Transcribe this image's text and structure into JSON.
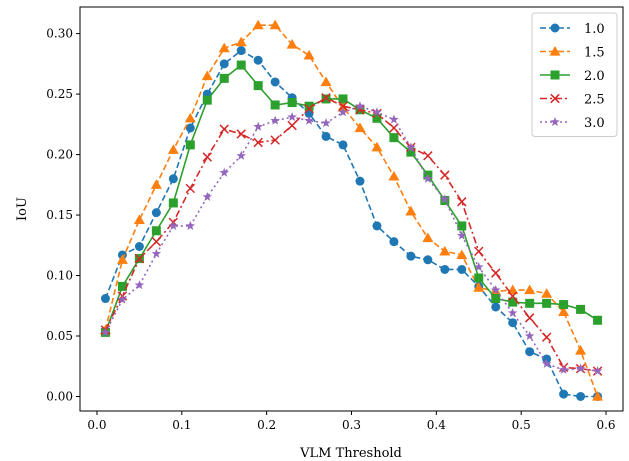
{
  "chart_data": {
    "type": "line",
    "title": "",
    "xlabel": "VLM Threshold",
    "ylabel": "IoU",
    "xlim": [
      -0.02,
      0.62
    ],
    "ylim": [
      -0.012,
      0.322
    ],
    "xticks": [
      0.0,
      0.1,
      0.2,
      0.3,
      0.4,
      0.5,
      0.6
    ],
    "xtick_labels": [
      "0.0",
      "0.1",
      "0.2",
      "0.3",
      "0.4",
      "0.5",
      "0.6"
    ],
    "yticks": [
      0.0,
      0.05,
      0.1,
      0.15,
      0.2,
      0.25,
      0.3
    ],
    "ytick_labels": [
      "0.00",
      "0.05",
      "0.10",
      "0.15",
      "0.20",
      "0.25",
      "0.30"
    ],
    "grid": false,
    "legend_position": "top-right",
    "x": [
      0.01,
      0.03,
      0.05,
      0.07,
      0.09,
      0.11,
      0.13,
      0.15,
      0.17,
      0.19,
      0.21,
      0.23,
      0.25,
      0.27,
      0.29,
      0.31,
      0.33,
      0.35,
      0.37,
      0.39,
      0.41,
      0.43,
      0.45,
      0.47,
      0.49,
      0.51,
      0.53,
      0.55,
      0.57,
      0.59
    ],
    "series": [
      {
        "name": "1.0",
        "color": "#1f77b4",
        "linestyle": "dashed",
        "marker": "circle",
        "values": [
          0.081,
          0.117,
          0.124,
          0.152,
          0.18,
          0.222,
          0.25,
          0.275,
          0.286,
          0.278,
          0.26,
          0.247,
          0.234,
          0.215,
          0.208,
          0.178,
          0.141,
          0.128,
          0.116,
          0.113,
          0.105,
          0.105,
          0.091,
          0.074,
          0.061,
          0.037,
          0.031,
          0.002,
          0.0,
          0.0
        ]
      },
      {
        "name": "1.5",
        "color": "#ff7f0e",
        "linestyle": "dashed",
        "marker": "triangle",
        "values": [
          0.055,
          0.113,
          0.146,
          0.175,
          0.204,
          0.23,
          0.265,
          0.288,
          0.293,
          0.307,
          0.307,
          0.291,
          0.282,
          0.26,
          0.239,
          0.222,
          0.206,
          0.182,
          0.153,
          0.131,
          0.12,
          0.117,
          0.09,
          0.087,
          0.088,
          0.088,
          0.085,
          0.07,
          0.038,
          0.0
        ]
      },
      {
        "name": "2.0",
        "color": "#2ca02c",
        "linestyle": "solid",
        "marker": "square",
        "values": [
          0.053,
          0.091,
          0.114,
          0.137,
          0.16,
          0.208,
          0.245,
          0.263,
          0.274,
          0.257,
          0.241,
          0.243,
          0.24,
          0.246,
          0.246,
          0.237,
          0.23,
          0.214,
          0.202,
          0.183,
          0.162,
          0.141,
          0.098,
          0.081,
          0.078,
          0.077,
          0.077,
          0.076,
          0.072,
          0.063
        ]
      },
      {
        "name": "2.5",
        "color": "#d62728",
        "linestyle": "dashdot",
        "marker": "x",
        "values": [
          0.055,
          0.083,
          0.114,
          0.128,
          0.144,
          0.172,
          0.198,
          0.221,
          0.217,
          0.21,
          0.212,
          0.224,
          0.238,
          0.247,
          0.24,
          0.237,
          0.234,
          0.222,
          0.206,
          0.199,
          0.183,
          0.161,
          0.12,
          0.102,
          0.083,
          0.065,
          0.049,
          0.024,
          0.023,
          0.021
        ]
      },
      {
        "name": "3.0",
        "color": "#9467bd",
        "linestyle": "dotted",
        "marker": "star",
        "values": [
          0.053,
          0.08,
          0.092,
          0.118,
          0.141,
          0.141,
          0.165,
          0.185,
          0.199,
          0.223,
          0.228,
          0.231,
          0.228,
          0.226,
          0.235,
          0.24,
          0.235,
          0.229,
          0.206,
          0.18,
          0.163,
          0.133,
          0.107,
          0.088,
          0.069,
          0.05,
          0.027,
          0.022,
          0.023,
          0.021
        ]
      }
    ]
  }
}
